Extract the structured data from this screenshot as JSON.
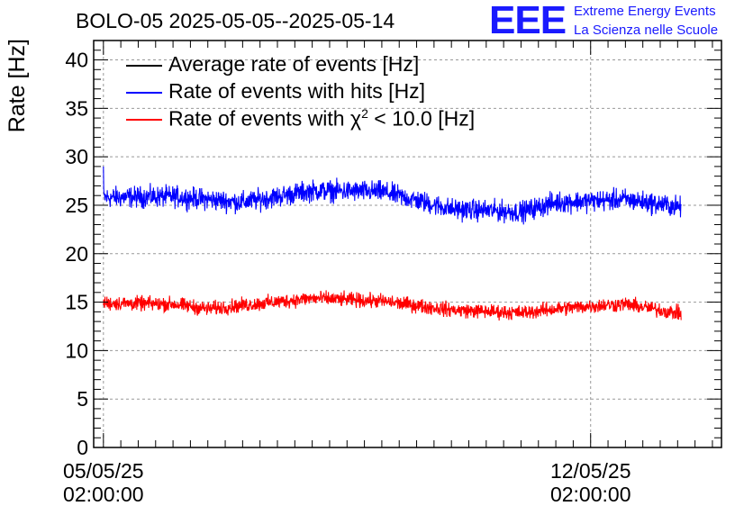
{
  "chart_data": {
    "type": "line",
    "title": "BOLO-05 2025-05-05--2025-05-14",
    "ylabel": "Rate [Hz]",
    "xlabel": "",
    "ylim": [
      0,
      42
    ],
    "yticks": [
      0,
      5,
      10,
      15,
      20,
      25,
      30,
      35,
      40
    ],
    "x_range_days": [
      -0.14,
      8.88
    ],
    "x_data_range_days": [
      0,
      8.3
    ],
    "x_tick_days": [
      0,
      7
    ],
    "x_tick_labels": [
      {
        "date": "05/05/25",
        "time": "02:00:00"
      },
      {
        "date": "12/05/25",
        "time": "02:00:00"
      }
    ],
    "grid": true,
    "series": [
      {
        "name": "Average rate of events [Hz]",
        "color": "#000000",
        "noise": 0,
        "trend": []
      },
      {
        "name": "Rate of events with hits [Hz]",
        "color": "#0000ff",
        "noise": 1.6,
        "trend": [
          [
            0,
            25.8
          ],
          [
            1,
            25.9
          ],
          [
            2,
            25.3
          ],
          [
            3,
            26.5
          ],
          [
            4,
            26.4
          ],
          [
            5,
            24.6
          ],
          [
            6,
            24.3
          ],
          [
            6.5,
            25.3
          ],
          [
            7.5,
            25.6
          ],
          [
            8.3,
            24.8
          ]
        ]
      },
      {
        "name": "Rate of events with χ2 < 10.0 [Hz]",
        "color": "#ff0000",
        "noise": 1.1,
        "trend": [
          [
            0,
            14.9
          ],
          [
            1,
            14.8
          ],
          [
            1.5,
            14.3
          ],
          [
            3,
            15.4
          ],
          [
            4,
            15.1
          ],
          [
            5,
            14.2
          ],
          [
            6,
            13.9
          ],
          [
            6.5,
            14.3
          ],
          [
            7,
            14.6
          ],
          [
            7.5,
            14.8
          ],
          [
            8.3,
            13.8
          ]
        ]
      }
    ]
  },
  "title": "BOLO-05 2025-05-05--2025-05-14",
  "logo": {
    "mark": "EEE",
    "line1": "Extreme Energy Events",
    "line2": "La Scienza nelle Scuole"
  },
  "legend": {
    "item0": "Average rate of events [Hz]",
    "item1": "Rate of events with hits [Hz]",
    "item2_prefix": "Rate of events with χ",
    "item2_sup": "2",
    "item2_suffix": " < 10.0 [Hz]",
    "color0": "#000000",
    "color1": "#0000ff",
    "color2": "#ff0000"
  }
}
